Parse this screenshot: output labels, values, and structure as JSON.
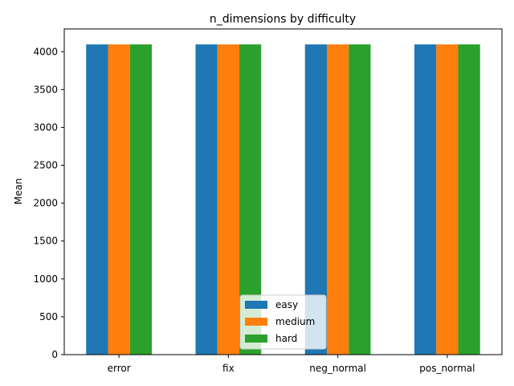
{
  "chart_data": {
    "type": "bar",
    "title": "n_dimensions by difficulty",
    "xlabel": "",
    "ylabel": "Mean",
    "categories": [
      "error",
      "fix",
      "neg_normal",
      "pos_normal"
    ],
    "series": [
      {
        "name": "easy",
        "color": "#1f77b4",
        "values": [
          4096,
          4096,
          4096,
          4096
        ]
      },
      {
        "name": "medium",
        "color": "#ff7f0e",
        "values": [
          4096,
          4096,
          4096,
          4096
        ]
      },
      {
        "name": "hard",
        "color": "#2ca02c",
        "values": [
          4096,
          4096,
          4096,
          4096
        ]
      }
    ],
    "ylim": [
      0,
      4300
    ],
    "yticks": [
      0,
      500,
      1000,
      1500,
      2000,
      2500,
      3000,
      3500,
      4000
    ],
    "grid": false,
    "legend_position": "lower center"
  }
}
